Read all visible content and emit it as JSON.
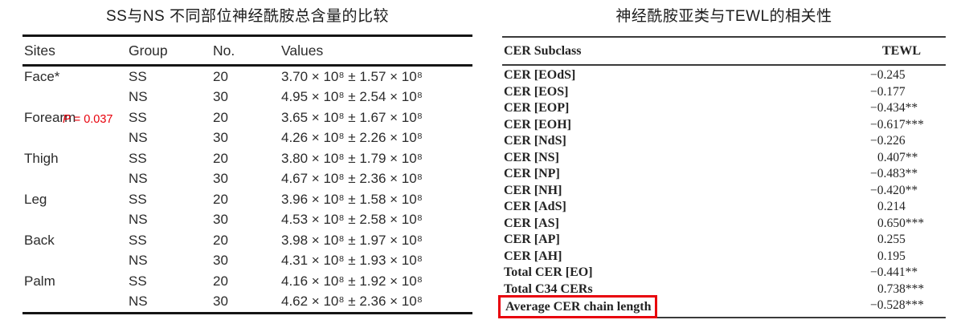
{
  "accent_red": "#e8000b",
  "left_table": {
    "title": "SS与NS 不同部位神经酰胺总含量的比较",
    "headers": [
      "Sites",
      "Group",
      "No.",
      "Values"
    ],
    "p_annotation": {
      "label": "P",
      "rest": " = 0.037"
    },
    "rows": [
      {
        "site": "Face*",
        "group": "SS",
        "no": "20",
        "value": "3.70 × 10⁸ ± 1.57 × 10⁸"
      },
      {
        "site": "",
        "group": "NS",
        "no": "30",
        "value": "4.95 × 10⁸ ± 2.54 × 10⁸"
      },
      {
        "site": "Forearm",
        "group": "SS",
        "no": "20",
        "value": "3.65 × 10⁸ ± 1.67 × 10⁸"
      },
      {
        "site": "",
        "group": "NS",
        "no": "30",
        "value": "4.26 × 10⁸ ± 2.26 × 10⁸"
      },
      {
        "site": "Thigh",
        "group": "SS",
        "no": "20",
        "value": "3.80 × 10⁸ ± 1.79 × 10⁸"
      },
      {
        "site": "",
        "group": "NS",
        "no": "30",
        "value": "4.67 × 10⁸ ± 2.36 × 10⁸"
      },
      {
        "site": "Leg",
        "group": "SS",
        "no": "20",
        "value": "3.96 × 10⁸ ± 1.58 × 10⁸"
      },
      {
        "site": "",
        "group": "NS",
        "no": "30",
        "value": "4.53 × 10⁸ ± 2.58 × 10⁸"
      },
      {
        "site": "Back",
        "group": "SS",
        "no": "20",
        "value": "3.98 × 10⁸ ± 1.97 × 10⁸"
      },
      {
        "site": "",
        "group": "NS",
        "no": "30",
        "value": "4.31 × 10⁸ ± 1.93 × 10⁸"
      },
      {
        "site": "Palm",
        "group": "SS",
        "no": "20",
        "value": "4.16 × 10⁸ ± 1.92 × 10⁸"
      },
      {
        "site": "",
        "group": "NS",
        "no": "30",
        "value": "4.62 × 10⁸ ± 2.36 × 10⁸"
      }
    ]
  },
  "right_table": {
    "title": "神经酰胺亚类与TEWL的相关性",
    "headers": [
      "CER Subclass",
      "TEWL"
    ],
    "rows": [
      {
        "subclass": "CER [EOdS]",
        "tewl": "−0.245"
      },
      {
        "subclass": "CER [EOS]",
        "tewl": "−0.177"
      },
      {
        "subclass": "CER [EOP]",
        "tewl": "−0.434**"
      },
      {
        "subclass": "CER [EOH]",
        "tewl": "−0.617***"
      },
      {
        "subclass": "CER [NdS]",
        "tewl": "−0.226"
      },
      {
        "subclass": "CER [NS]",
        "tewl": "0.407**"
      },
      {
        "subclass": "CER [NP]",
        "tewl": "−0.483**"
      },
      {
        "subclass": "CER [NH]",
        "tewl": "−0.420**"
      },
      {
        "subclass": "CER [AdS]",
        "tewl": "0.214"
      },
      {
        "subclass": "CER [AS]",
        "tewl": "0.650***"
      },
      {
        "subclass": "CER [AP]",
        "tewl": "0.255"
      },
      {
        "subclass": "CER [AH]",
        "tewl": "0.195"
      },
      {
        "subclass": "Total CER [EO]",
        "tewl": "−0.441**"
      },
      {
        "subclass": "Total C34 CERs",
        "tewl": "0.738***"
      },
      {
        "subclass": "Average CER chain length",
        "tewl": "−0.528***",
        "highlighted": true
      }
    ]
  }
}
